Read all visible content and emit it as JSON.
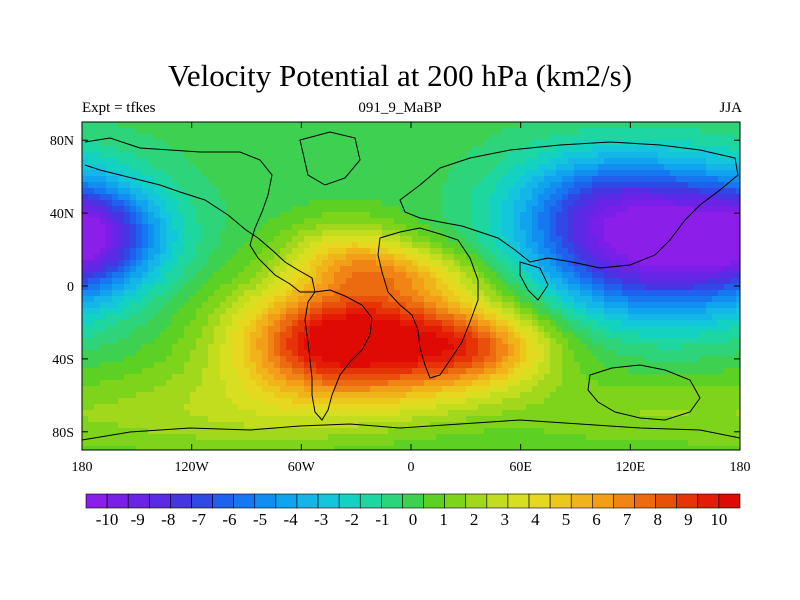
{
  "header": {
    "title": "Velocity Potential at 200 hPa (km2/s)",
    "left_label": "Expt = tfkes",
    "center_label": "091_9_MaBP",
    "right_label": "JJA"
  },
  "chart_data": {
    "type": "heatmap",
    "title": "Velocity Potential at 200 hPa (km2/s)",
    "xlabel": "",
    "ylabel": "",
    "xlim": [
      -180,
      180
    ],
    "ylim": [
      -90,
      90
    ],
    "x_ticks": [
      {
        "value": -180,
        "label": "180"
      },
      {
        "value": -120,
        "label": "120W"
      },
      {
        "value": -60,
        "label": "60W"
      },
      {
        "value": 0,
        "label": "0"
      },
      {
        "value": 60,
        "label": "60E"
      },
      {
        "value": 120,
        "label": "120E"
      },
      {
        "value": 180,
        "label": "180"
      }
    ],
    "y_ticks": [
      {
        "value": 80,
        "label": "80N"
      },
      {
        "value": 40,
        "label": "40N"
      },
      {
        "value": 0,
        "label": "0"
      },
      {
        "value": -40,
        "label": "40S"
      },
      {
        "value": -80,
        "label": "80S"
      }
    ],
    "features": [
      {
        "lon": -20,
        "lat": -30,
        "sx": 50,
        "sy": 24,
        "amp": 10.5
      },
      {
        "lon": 40,
        "lat": -35,
        "sx": 26,
        "sy": 13,
        "amp": 3.5
      },
      {
        "lon": -55,
        "lat": -30,
        "sx": 25,
        "sy": 18,
        "amp": 2.0
      },
      {
        "lon": -35,
        "lat": 18,
        "sx": 24,
        "sy": 14,
        "amp": 3.2
      },
      {
        "lon": -5,
        "lat": 8,
        "sx": 28,
        "sy": 10,
        "amp": 2.5
      },
      {
        "lon": 135,
        "lat": 25,
        "sx": 48,
        "sy": 28,
        "amp": -11.0
      },
      {
        "lon": 95,
        "lat": 50,
        "sx": 30,
        "sy": 18,
        "amp": -2.0
      },
      {
        "lon": -172,
        "lat": 28,
        "sx": 24,
        "sy": 18,
        "amp": -5.0
      },
      {
        "lon": -110,
        "lat": -70,
        "sx": 60,
        "sy": 18,
        "amp": 2.0
      },
      {
        "lon": 120,
        "lat": -70,
        "sx": 50,
        "sy": 15,
        "amp": 1.5
      }
    ],
    "colorbar": {
      "levels": [
        "-10",
        "-9",
        "-8",
        "-7",
        "-6",
        "-5",
        "-4",
        "-3",
        "-2",
        "-1",
        "0",
        "1",
        "2",
        "3",
        "4",
        "5",
        "6",
        "7",
        "8",
        "9",
        "10"
      ],
      "colors": [
        "#8c1eea",
        "#7a1fe8",
        "#6a24e6",
        "#5a2ae4",
        "#4636e2",
        "#3048e6",
        "#1f60ec",
        "#1777f0",
        "#128ef0",
        "#10a3ee",
        "#14b6e8",
        "#14c6dc",
        "#14d2c2",
        "#1ed7a0",
        "#2ed47a",
        "#3ed050",
        "#5dd024",
        "#7ed41a",
        "#a2d81c",
        "#c2dc1e",
        "#d8de20",
        "#e6d81e",
        "#ecc81c",
        "#f0b41a",
        "#f29e18",
        "#f08414",
        "#ec6a10",
        "#e8500c",
        "#e63408",
        "#e41c06",
        "#e00a04"
      ]
    }
  }
}
